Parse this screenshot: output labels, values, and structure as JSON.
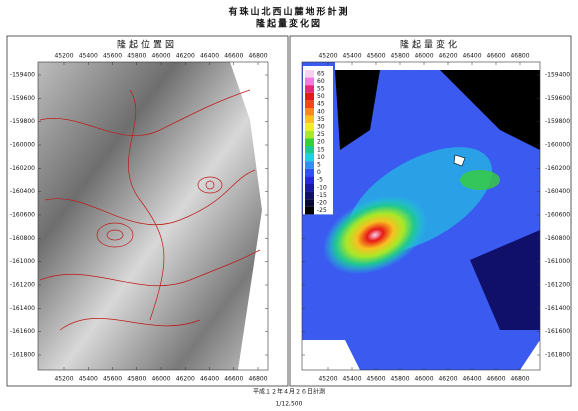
{
  "header": {
    "title": "有珠山北西山麓地形計測",
    "subtitle": "隆起量変化図"
  },
  "panels": [
    {
      "title": "隆起位置図",
      "x_ticks": [
        45200,
        45400,
        45600,
        45800,
        46000,
        46200,
        46400,
        46600,
        46800
      ],
      "y_ticks": [
        -159400,
        -159600,
        -159800,
        -160000,
        -160200,
        -160400,
        -160600,
        -160800,
        -161000,
        -161200,
        -161400,
        -161600,
        -161800
      ]
    },
    {
      "title": "隆起量変化",
      "x_ticks": [
        45200,
        45400,
        45600,
        45800,
        46000,
        46200,
        46400,
        46600,
        46800
      ],
      "y_ticks": [
        -159400,
        -159600,
        -159800,
        -160000,
        -160200,
        -160400,
        -160600,
        -160800,
        -161000,
        -161200,
        -161400,
        -161600,
        -161800
      ],
      "colorbar": [
        {
          "value": 65,
          "color": "#f4d2f0"
        },
        {
          "value": 60,
          "color": "#f07ce0"
        },
        {
          "value": 55,
          "color": "#e8287a"
        },
        {
          "value": 50,
          "color": "#e81818"
        },
        {
          "value": 45,
          "color": "#f04818"
        },
        {
          "value": 40,
          "color": "#f88820"
        },
        {
          "value": 35,
          "color": "#f8c020"
        },
        {
          "value": 30,
          "color": "#f0f020"
        },
        {
          "value": 25,
          "color": "#a8e828"
        },
        {
          "value": 20,
          "color": "#38d038"
        },
        {
          "value": 15,
          "color": "#20c890"
        },
        {
          "value": 10,
          "color": "#20d0e0"
        },
        {
          "value": 5,
          "color": "#3090f0"
        },
        {
          "value": 0,
          "color": "#3050f0"
        },
        {
          "value": -5,
          "color": "#2828d8"
        },
        {
          "value": -10,
          "color": "#1818a0"
        },
        {
          "value": -15,
          "color": "#101068"
        },
        {
          "value": -20,
          "color": "#080830"
        },
        {
          "value": -25,
          "color": "#000000"
        }
      ]
    }
  ],
  "footer": {
    "date": "平成１２年４月２６日計測",
    "scale": "1/12,500"
  }
}
